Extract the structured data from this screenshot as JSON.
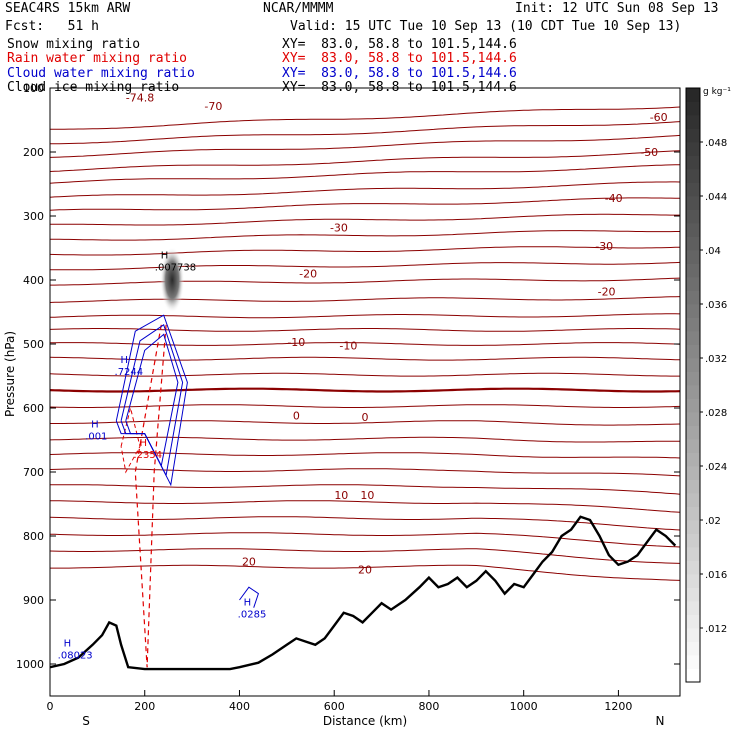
{
  "header": {
    "model": "SEAC4RS 15km ARW",
    "org": "NCAR/MMMM",
    "init": "Init: 12 UTC Sun 08 Sep 13",
    "fcst": "Fcst:   51 h",
    "valid": "Valid: 15 UTC Tue 10 Sep 13 (10 CDT Tue 10 Sep 13)"
  },
  "fields": [
    {
      "name": "Snow mixing ratio",
      "xy": "XY=  83.0, 58.8 to 101.5,144.6",
      "color": "#000000"
    },
    {
      "name": "Rain water mixing ratio",
      "xy": "XY=  83.0, 58.8 to 101.5,144.6",
      "color": "#e00000"
    },
    {
      "name": "Cloud water mixing ratio",
      "xy": "XY=  83.0, 58.8 to 101.5,144.6",
      "color": "#0000cc"
    },
    {
      "name": "Cloud ice mixing ratio",
      "xy": "XY=  83.0, 58.8 to 101.5,144.6",
      "color": "#000000"
    }
  ],
  "chart_data": {
    "type": "cross-section",
    "xlabel": "Distance (km)",
    "ylabel": "Pressure (hPa)",
    "xlim": [
      0,
      1330
    ],
    "ylim": [
      100,
      1050
    ],
    "x_ticks": [
      0,
      200,
      400,
      600,
      800,
      1000,
      1200
    ],
    "y_ticks": [
      100,
      200,
      300,
      400,
      500,
      600,
      700,
      800,
      900,
      1000
    ],
    "y_tick_labels": [
      "100",
      "200",
      "300",
      "400",
      "500",
      "600",
      "700",
      "800",
      "900",
      "1000"
    ],
    "x_end_labels": {
      "left": "S",
      "right": "N"
    },
    "colorbar": {
      "unit": "g kg⁻¹",
      "ticks": [
        0.012,
        0.016,
        0.02,
        0.024,
        0.028,
        0.032,
        0.036,
        0.04,
        0.044,
        0.048
      ],
      "tick_labels": [
        ".012",
        ".016",
        ".02",
        ".024",
        ".028",
        ".032",
        ".036",
        ".04",
        ".044",
        ".048"
      ],
      "range": [
        0.008,
        0.052
      ]
    },
    "temperature_labels": [
      {
        "text": "-74.8",
        "x": 190,
        "p": 115
      },
      {
        "text": "-70",
        "x": 345,
        "p": 128
      },
      {
        "text": "-60",
        "x": 1285,
        "p": 145
      },
      {
        "text": "-50",
        "x": 1265,
        "p": 200
      },
      {
        "text": "-40",
        "x": 1190,
        "p": 272
      },
      {
        "text": "-30",
        "x": 610,
        "p": 318
      },
      {
        "text": "-30",
        "x": 1170,
        "p": 347
      },
      {
        "text": "-20",
        "x": 545,
        "p": 390
      },
      {
        "text": "-20",
        "x": 1175,
        "p": 418
      },
      {
        "text": "-10",
        "x": 520,
        "p": 497
      },
      {
        "text": "-10",
        "x": 630,
        "p": 502
      },
      {
        "text": "0",
        "x": 520,
        "p": 612
      },
      {
        "text": "0",
        "x": 665,
        "p": 614
      },
      {
        "text": "10",
        "x": 615,
        "p": 736
      },
      {
        "text": "10",
        "x": 670,
        "p": 736
      },
      {
        "text": "20",
        "x": 420,
        "p": 840
      },
      {
        "text": "20",
        "x": 665,
        "p": 852
      }
    ],
    "isotherm_levels": [
      -70,
      -60,
      -50,
      -40,
      -30,
      -20,
      -10,
      0,
      10,
      20
    ],
    "max_labels": [
      {
        "text": ".007738",
        "x": 255,
        "p": 382,
        "color": "#000000"
      },
      {
        "text": ".7244",
        "x": 170,
        "p": 545,
        "color": "#0000cc"
      },
      {
        "text": ".001",
        "x": 108,
        "p": 646,
        "color": "#0000cc"
      },
      {
        "text": ".2354",
        "x": 210,
        "p": 675,
        "color": "#e00000"
      },
      {
        "text": ".0285",
        "x": 430,
        "p": 924,
        "color": "#0000cc"
      },
      {
        "text": ".08023",
        "x": 50,
        "p": 988,
        "color": "#0000cc"
      }
    ],
    "terrain_pressure": [
      [
        0,
        1005
      ],
      [
        30,
        1000
      ],
      [
        60,
        990
      ],
      [
        90,
        970
      ],
      [
        110,
        955
      ],
      [
        125,
        935
      ],
      [
        140,
        940
      ],
      [
        150,
        970
      ],
      [
        165,
        1005
      ],
      [
        200,
        1008
      ],
      [
        300,
        1008
      ],
      [
        380,
        1008
      ],
      [
        400,
        1005
      ],
      [
        440,
        998
      ],
      [
        470,
        985
      ],
      [
        500,
        970
      ],
      [
        520,
        960
      ],
      [
        540,
        965
      ],
      [
        560,
        970
      ],
      [
        580,
        960
      ],
      [
        600,
        940
      ],
      [
        620,
        920
      ],
      [
        640,
        925
      ],
      [
        660,
        935
      ],
      [
        680,
        920
      ],
      [
        700,
        905
      ],
      [
        720,
        915
      ],
      [
        750,
        900
      ],
      [
        780,
        880
      ],
      [
        800,
        865
      ],
      [
        820,
        880
      ],
      [
        840,
        875
      ],
      [
        860,
        865
      ],
      [
        880,
        880
      ],
      [
        900,
        870
      ],
      [
        920,
        855
      ],
      [
        940,
        870
      ],
      [
        960,
        890
      ],
      [
        980,
        875
      ],
      [
        1000,
        880
      ],
      [
        1020,
        860
      ],
      [
        1040,
        840
      ],
      [
        1060,
        825
      ],
      [
        1080,
        800
      ],
      [
        1100,
        790
      ],
      [
        1120,
        770
      ],
      [
        1140,
        775
      ],
      [
        1160,
        800
      ],
      [
        1180,
        830
      ],
      [
        1200,
        845
      ],
      [
        1220,
        840
      ],
      [
        1240,
        830
      ],
      [
        1260,
        810
      ],
      [
        1280,
        790
      ],
      [
        1300,
        800
      ],
      [
        1320,
        815
      ]
    ]
  }
}
